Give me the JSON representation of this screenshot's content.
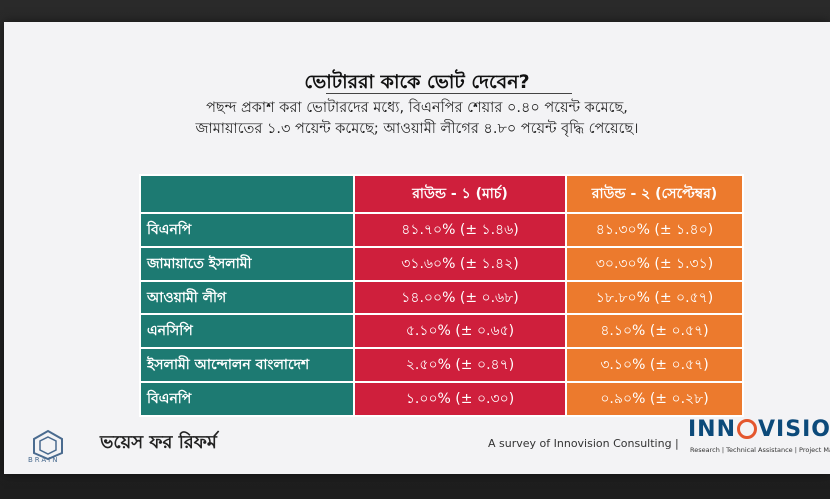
{
  "slide": {
    "title": "ভোটাররা কাকে ভোট দেবেন?",
    "subtitle_line1": "পছন্দ প্রকাশ করা ভোটারদের মধ্যে, বিএনপির শেয়ার ০.৪০ পয়েন্ট কমেছে,",
    "subtitle_line2": "জামায়াতের ১.৩ পয়েন্ট কমেছে; আওয়ামী লীগের ৪.৮০ পয়েন্ট বৃদ্ধি পেয়েছে।"
  },
  "table": {
    "headers": [
      "",
      "রাউন্ড - ১ (মার্চ)",
      "রাউন্ড - ২ (সেপ্টেম্বর)"
    ],
    "rows": [
      {
        "party": "বিএনপি",
        "round1": "৪১.৭০% (± ১.৪৬)",
        "round2": "৪১.৩০% (± ১.৪০)"
      },
      {
        "party": "জামায়াতে ইসলামী",
        "round1": "৩১.৬০% (± ১.৪২)",
        "round2": "৩০.৩০% (± ১.৩১)"
      },
      {
        "party": "আওয়ামী লীগ",
        "round1": "১৪.০০% (± ০.৬৮)",
        "round2": "১৮.৮০% (± ০.৫৭)"
      },
      {
        "party": "এনসিপি",
        "round1": "৫.১০% (± ০.৬৫)",
        "round2": "৪.১০% (± ০.৫৭)"
      },
      {
        "party": "ইসলামী আন্দোলন বাংলাদেশ",
        "round1": "২.৫০% (± ০.৪৭)",
        "round2": "৩.১০% (± ০.৫৭)"
      },
      {
        "party": "বিএনপি",
        "round1": "১.০০% (± ০.৩০)",
        "round2": "০.৯০% (± ০.২৮)"
      }
    ]
  },
  "footer": {
    "source": "A survey of Innovision Consulting |",
    "brain_label": "BRAIN",
    "voice_logo": "ভয়েস ফর রিফর্ম",
    "innovision_left": "INN",
    "innovision_right": "VISION",
    "innovision_tagline": "Research | Technical Assistance | Project Management"
  },
  "colors": {
    "party_column": "#1d7a72",
    "round1": "#cf1f3c",
    "round2": "#ec7a2d"
  }
}
